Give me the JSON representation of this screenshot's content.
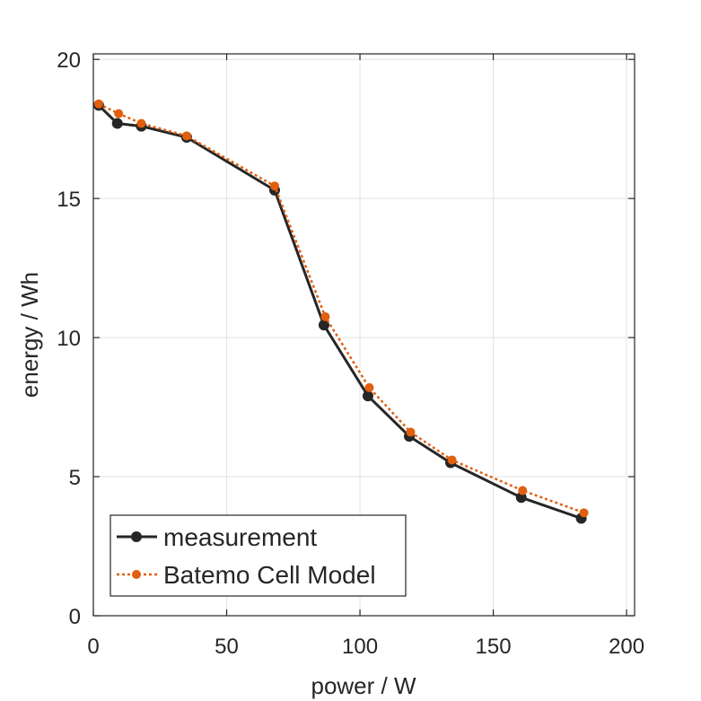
{
  "chart_data": {
    "type": "line",
    "title": "",
    "xlabel": "power / W",
    "ylabel": "energy / Wh",
    "xlim": [
      0,
      203
    ],
    "ylim": [
      0,
      20.2
    ],
    "xticks": [
      0,
      50,
      100,
      150,
      200
    ],
    "yticks": [
      0,
      5,
      10,
      15,
      20
    ],
    "xtick_labels": [
      "0",
      "50",
      "100",
      "150",
      "200"
    ],
    "ytick_labels": [
      "0",
      "5",
      "10",
      "15",
      "20"
    ],
    "grid": true,
    "legend_position": "bottom-left",
    "series": [
      {
        "name": "measurement",
        "color": "#262626",
        "line_style": "solid",
        "marker": "circle",
        "x": [
          2,
          9,
          18,
          35,
          68,
          86.5,
          103,
          118.5,
          134,
          160.5,
          183
        ],
        "y": [
          18.35,
          17.7,
          17.6,
          17.2,
          15.3,
          10.45,
          7.9,
          6.45,
          5.5,
          4.25,
          3.5
        ]
      },
      {
        "name": "Batemo Cell Model",
        "color": "#e06010",
        "line_style": "dotted",
        "marker": "circle",
        "x": [
          2,
          9.5,
          18,
          35,
          68,
          87,
          103.5,
          119,
          134.5,
          161,
          184
        ],
        "y": [
          18.4,
          18.05,
          17.7,
          17.25,
          15.45,
          10.75,
          8.2,
          6.6,
          5.6,
          4.5,
          3.7
        ]
      }
    ]
  }
}
